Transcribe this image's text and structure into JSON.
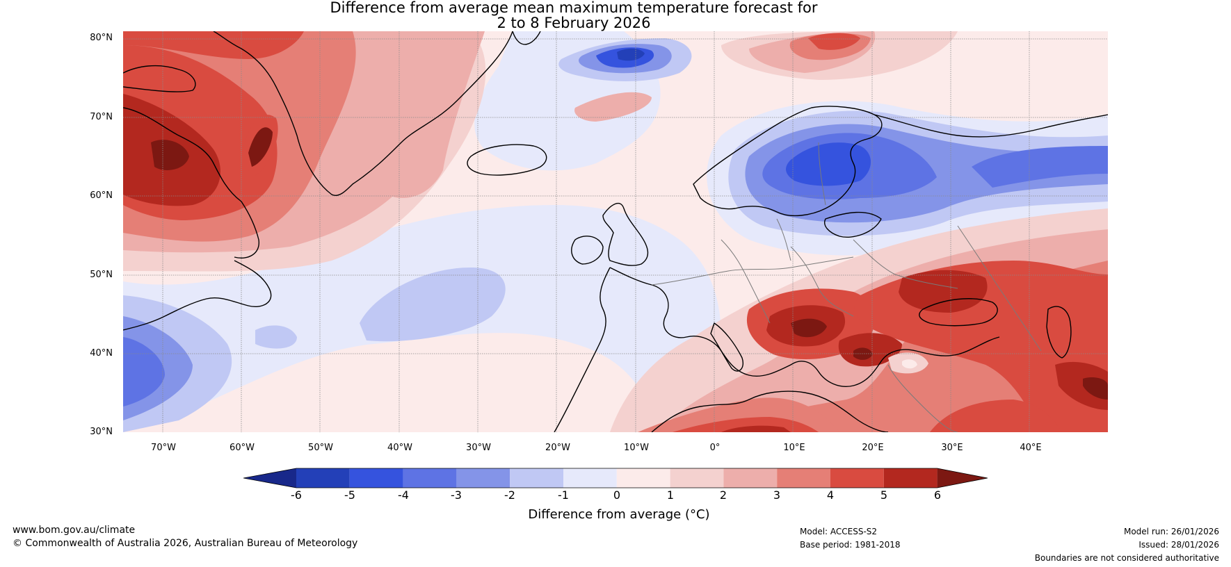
{
  "title": {
    "line1": "Difference from average mean maximum temperature forecast for",
    "line2": "2 to 8 February 2026"
  },
  "axes": {
    "lat_labels": [
      "80°N",
      "70°N",
      "60°N",
      "50°N",
      "40°N",
      "30°N"
    ],
    "lon_labels": [
      "70°W",
      "60°W",
      "50°W",
      "40°W",
      "30°W",
      "20°W",
      "10°W",
      "0°",
      "10°E",
      "20°E",
      "30°E",
      "40°E"
    ],
    "lon_range": [
      -75,
      50
    ],
    "lat_range": [
      30,
      81
    ]
  },
  "colorbar": {
    "ticks": [
      "-6",
      "-5",
      "-4",
      "-3",
      "-2",
      "-1",
      "0",
      "1",
      "2",
      "3",
      "4",
      "5",
      "6"
    ],
    "label": "Difference from average (°C)",
    "colors": {
      "below_min": "#18288a",
      "c_m6_m5": "#2340b8",
      "c_m5_m4": "#3553de",
      "c_m4_m3": "#5e73e4",
      "c_m3_m2": "#8494e8",
      "c_m2_m1": "#c0c8f4",
      "c_m1_0": "#e6e9fb",
      "c_0_1": "#fcebea",
      "c_1_2": "#f4d1cf",
      "c_2_3": "#edaeab",
      "c_3_4": "#e57f76",
      "c_4_5": "#d94b40",
      "c_5_6": "#b3281f",
      "above_max": "#7c1812"
    }
  },
  "footer": {
    "website": "www.bom.gov.au/climate",
    "copyright": "© Commonwealth of Australia 2026, Australian Bureau of Meteorology",
    "model": "Model: ACCESS-S2",
    "base_period": "Base period: 1981-2018",
    "model_run": "Model run: 26/01/2026",
    "issued": "Issued: 28/01/2026",
    "boundaries": "Boundaries are not considered authoritative"
  }
}
